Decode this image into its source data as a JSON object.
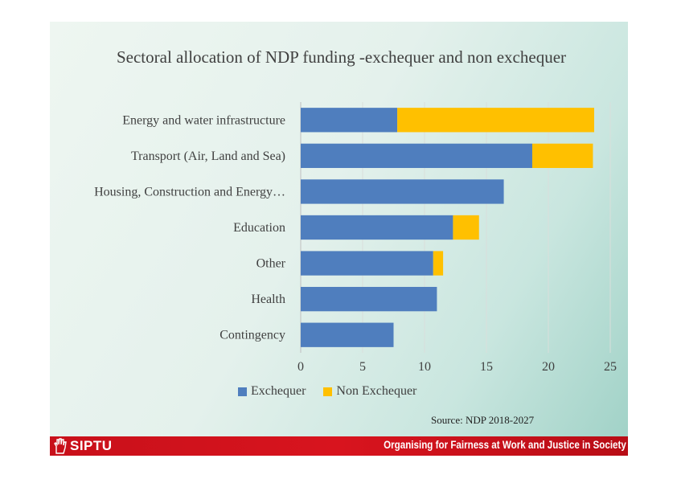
{
  "chart_data": {
    "type": "bar",
    "orientation": "horizontal",
    "stacked": true,
    "title": "Sectoral allocation of NDP funding -exchequer and non exchequer",
    "categories": [
      "Energy and water infrastructure",
      "Transport (Air, Land and Sea)",
      "Housing, Construction and Energy…",
      "Education",
      "Other",
      "Health",
      "Contingency"
    ],
    "series": [
      {
        "name": "Exchequer",
        "color": "#4f7ebe",
        "values": [
          7.8,
          18.7,
          16.4,
          12.3,
          10.7,
          11.0,
          7.5
        ]
      },
      {
        "name": "Non Exchequer",
        "color": "#ffc000",
        "values": [
          15.9,
          4.9,
          0,
          2.1,
          0.8,
          0,
          0
        ]
      }
    ],
    "xlim": [
      0,
      25
    ],
    "xticks": [
      0,
      5,
      10,
      15,
      20,
      25
    ],
    "grid": true,
    "legend_position": "bottom"
  },
  "source_text": "Source: NDP 2018-2027",
  "footer": {
    "logo_text": "SIPTU",
    "logo_icon": "hand-icon",
    "tagline": "Organising for Fairness at Work and Justice in Society",
    "color": "#c8101a"
  }
}
